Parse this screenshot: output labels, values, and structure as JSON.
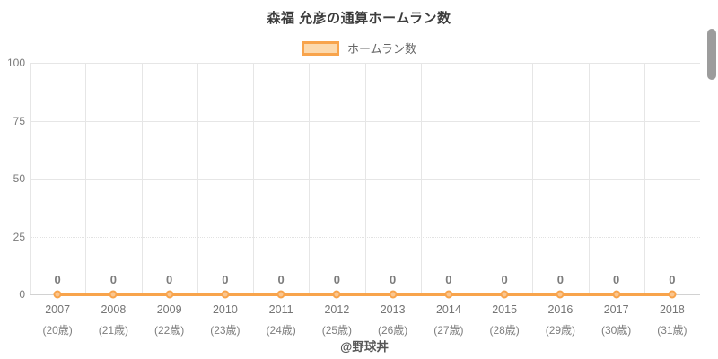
{
  "page": {
    "footer_credit": "@野球丼"
  },
  "colors": {
    "series_orange": "#f8a44c",
    "series_fill_light": "#fcd9ad",
    "point_fill": "#fbc68f",
    "grid_gray": "#e6e6e6",
    "baseline_gray": "#d2d2d2",
    "text_gray": "#7a7a7a",
    "title_gray": "#3d3d3d",
    "scrollbar_gray": "#9c9c9c"
  },
  "chart_data": {
    "type": "line",
    "title": "森福 允彦の通算ホームラン数",
    "legend": [
      {
        "label": "ホームラン数"
      }
    ],
    "legend_position": "top",
    "categories": [
      "2007",
      "2008",
      "2009",
      "2010",
      "2011",
      "2012",
      "2013",
      "2014",
      "2015",
      "2016",
      "2017",
      "2018"
    ],
    "category_sublabels": [
      "(20歳)",
      "(21歳)",
      "(22歳)",
      "(23歳)",
      "(24歳)",
      "(25歳)",
      "(26歳)",
      "(27歳)",
      "(28歳)",
      "(29歳)",
      "(30歳)",
      "(31歳)"
    ],
    "series": [
      {
        "name": "ホームラン数",
        "values": [
          0,
          0,
          0,
          0,
          0,
          0,
          0,
          0,
          0,
          0,
          0,
          0
        ]
      }
    ],
    "ylim": [
      0,
      100
    ],
    "yticks": [
      0,
      25,
      50,
      75,
      100
    ],
    "grid": true,
    "xlabel": "",
    "ylabel": ""
  }
}
